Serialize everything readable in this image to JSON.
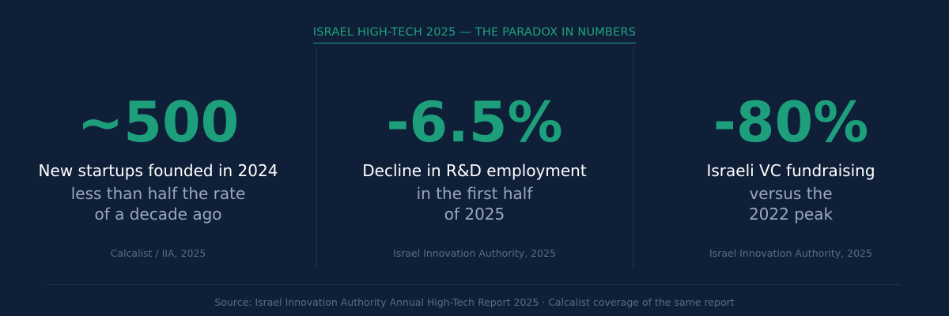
{
  "header": {
    "title": "ISRAEL HIGH-TECH 2025 — THE PARADOX IN NUMBERS"
  },
  "stats": [
    {
      "value": "~500",
      "label": "New startups founded in 2024",
      "sub_line1": "less than half the rate",
      "sub_line2": "of a decade ago",
      "source": "Calcalist / IIA, 2025"
    },
    {
      "value": "-6.5%",
      "label": "Decline in R&D employment",
      "sub_line1": "in the first half",
      "sub_line2": "of 2025",
      "source": "Israel Innovation Authority, 2025"
    },
    {
      "value": "-80%",
      "label": "Israeli VC fundraising",
      "sub_line1": "versus the",
      "sub_line2": "2022 peak",
      "source": "Israel Innovation Authority, 2025"
    }
  ],
  "footer": {
    "source_text": "Source: Israel Innovation Authority Annual High-Tech Report 2025 · Calcalist coverage of the same report"
  },
  "colors": {
    "background": "#0f1f38",
    "accent": "#1d9f7c",
    "text_primary": "#ffffff",
    "text_secondary": "#9aa7ba",
    "text_muted": "#5d6b82"
  }
}
